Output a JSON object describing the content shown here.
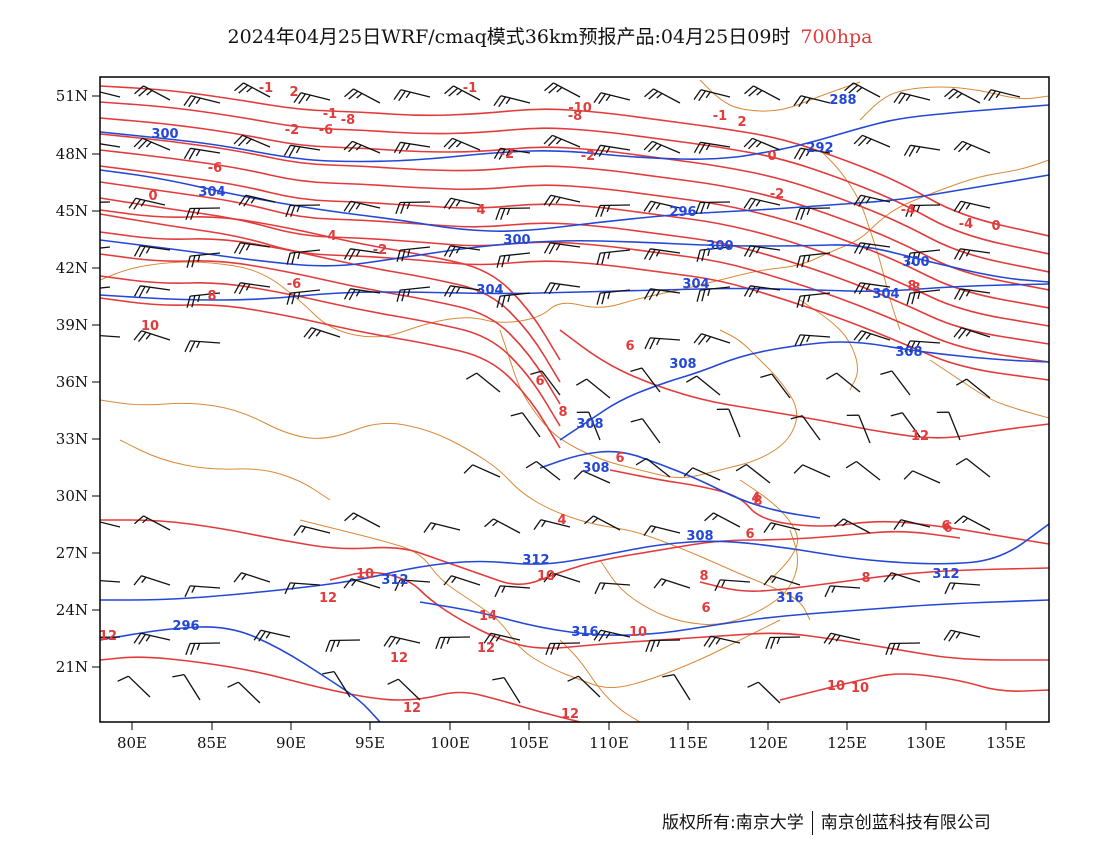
{
  "title": {
    "main": "2024年04月25日WRF/cmaq模式36km预报产品:04月25日09时",
    "level": "700hpa"
  },
  "colors": {
    "temperature": "#e23b3b",
    "height": "#2347d6",
    "boundary": "#d98a3a",
    "wind": "#111111"
  },
  "axes": {
    "lon_labels": [
      "80E",
      "85E",
      "90E",
      "95E",
      "100E",
      "105E",
      "110E",
      "115E",
      "120E",
      "125E",
      "130E",
      "135E"
    ],
    "lat_labels": [
      "51N",
      "48N",
      "45N",
      "42N",
      "39N",
      "36N",
      "33N",
      "30N",
      "27N",
      "24N",
      "21N"
    ]
  },
  "height_labels": [
    "300",
    "304",
    "296",
    "288",
    "292",
    "300",
    "300",
    "304",
    "304",
    "304",
    "300",
    "308",
    "308",
    "308",
    "308",
    "308",
    "312",
    "312",
    "312",
    "316",
    "316",
    "296"
  ],
  "temperature_labels": [
    "-1",
    "-1",
    "2",
    "-2",
    "-6",
    "-6",
    "-8",
    "-1",
    "-1",
    "-8",
    "-10",
    "-2",
    "-2",
    "0",
    "2",
    "-2",
    "-4",
    "4",
    "0",
    "4",
    "-2",
    "8",
    "8",
    "6",
    "-6",
    "-4",
    "0",
    "10",
    "6",
    "8",
    "6",
    "8",
    "4",
    "6",
    "10",
    "10",
    "6",
    "6",
    "12",
    "12",
    "12",
    "14",
    "10",
    "12",
    "12",
    "12",
    "8",
    "10",
    "12",
    "6",
    "8",
    "10",
    "4",
    "8"
  ],
  "footer": {
    "left": "版权所有:南京大学",
    "right": "南京创蓝科技有限公司"
  }
}
